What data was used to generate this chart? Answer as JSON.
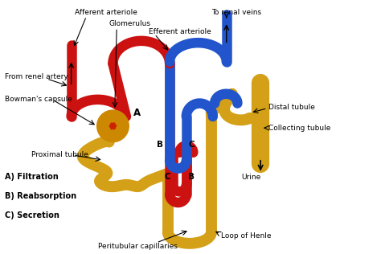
{
  "background_color": "#ffffff",
  "labels": {
    "afferent_arteriole": "Afferent arteriole",
    "glomerulus": "Glomerulus",
    "efferent_arteriole": "Efferent arteriole",
    "to_renal_veins": "To renal veins",
    "from_renal_artery": "From renel artery",
    "bowmans_capsule": "Bowman's capsule",
    "proximal_tubule": "Proximal tubule",
    "distal_tubule": "Distal tubule",
    "collecting_tubule": "Collecting tubule",
    "urine": "Urine",
    "loop_of_henle": "Loop of Henle",
    "peritubular": "Peritubular capillaries",
    "A": "A",
    "B_top": "B",
    "C_top": "C",
    "B_bot": "B",
    "C_bot": "C",
    "legend_A": "A) Filtration",
    "legend_B": "B) Reabsorption",
    "legend_C": "C) Secretion"
  },
  "colors": {
    "red": "#cc1111",
    "blue": "#2255cc",
    "gold": "#d4a017",
    "glom_fill": "#cc8800",
    "glom_knot": "#cc2200",
    "white": "#ffffff",
    "black": "#000000"
  }
}
